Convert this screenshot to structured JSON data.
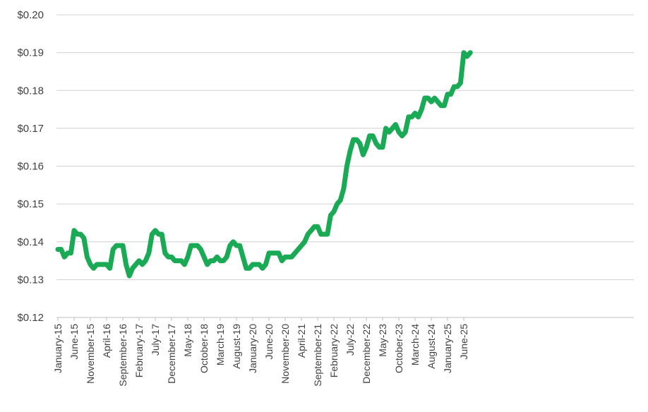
{
  "chart_data": {
    "type": "line",
    "title": "",
    "xlabel": "",
    "ylabel": "",
    "ylim": [
      0.12,
      0.2
    ],
    "grid": true,
    "y_ticks": [
      0.12,
      0.13,
      0.14,
      0.15,
      0.16,
      0.17,
      0.18,
      0.19,
      0.2
    ],
    "y_tick_labels": [
      "$0.12",
      "$0.13",
      "$0.14",
      "$0.15",
      "$0.16",
      "$0.17",
      "$0.18",
      "$0.19",
      "$0.20"
    ],
    "x_tick_labels": [
      "January-15",
      "June-15",
      "November-15",
      "April-16",
      "September-16",
      "February-17",
      "July-17",
      "December-17",
      "May-18",
      "October-18",
      "March-19",
      "August-19",
      "January-20",
      "June-20",
      "November-20",
      "April-21",
      "September-21",
      "February-22",
      "July-22",
      "December-22",
      "May-23",
      "October-23",
      "March-24",
      "August-24",
      "January-25",
      "June-25"
    ],
    "series": [
      {
        "color": "#1aaa55",
        "values": [
          0.138,
          0.138,
          0.136,
          0.137,
          0.137,
          0.143,
          0.142,
          0.142,
          0.141,
          0.136,
          0.134,
          0.133,
          0.134,
          0.134,
          0.134,
          0.134,
          0.133,
          0.138,
          0.139,
          0.139,
          0.139,
          0.134,
          0.131,
          0.133,
          0.134,
          0.135,
          0.134,
          0.135,
          0.137,
          0.142,
          0.143,
          0.142,
          0.142,
          0.137,
          0.136,
          0.136,
          0.135,
          0.135,
          0.135,
          0.134,
          0.136,
          0.139,
          0.139,
          0.139,
          0.138,
          0.136,
          0.134,
          0.135,
          0.135,
          0.136,
          0.135,
          0.135,
          0.136,
          0.139,
          0.14,
          0.139,
          0.139,
          0.136,
          0.133,
          0.133,
          0.134,
          0.134,
          0.134,
          0.133,
          0.134,
          0.137,
          0.137,
          0.137,
          0.137,
          0.135,
          0.136,
          0.136,
          0.136,
          0.137,
          0.138,
          0.139,
          0.14,
          0.142,
          0.143,
          0.144,
          0.144,
          0.142,
          0.142,
          0.142,
          0.147,
          0.148,
          0.15,
          0.151,
          0.154,
          0.16,
          0.164,
          0.167,
          0.167,
          0.166,
          0.163,
          0.165,
          0.168,
          0.168,
          0.166,
          0.165,
          0.165,
          0.17,
          0.169,
          0.17,
          0.171,
          0.169,
          0.168,
          0.169,
          0.173,
          0.173,
          0.174,
          0.173,
          0.175,
          0.178,
          0.178,
          0.177,
          0.178,
          0.177,
          0.176,
          0.176,
          0.179,
          0.179,
          0.181,
          0.181,
          0.182,
          0.19,
          0.189,
          0.19
        ]
      }
    ]
  }
}
